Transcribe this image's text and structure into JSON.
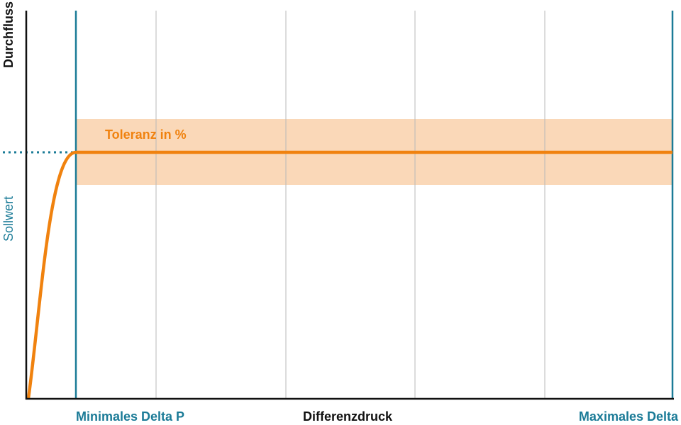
{
  "axes": {
    "y_label": "Durchfluss",
    "x_label": "Differenzdruck",
    "setpoint_label": "Sollwert"
  },
  "band": {
    "label": "Toleranz in %"
  },
  "x_markers": {
    "min": "Minimales Delta P",
    "max": "Maximales Delta"
  }
}
